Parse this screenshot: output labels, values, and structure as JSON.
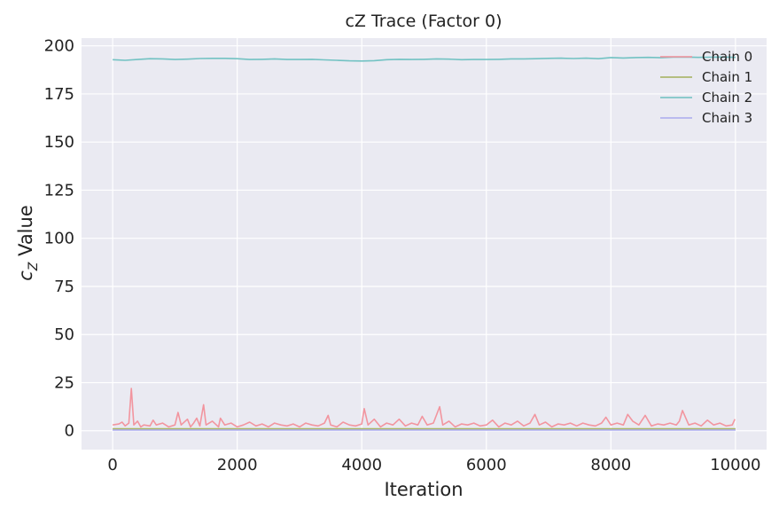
{
  "chart_data": {
    "type": "line",
    "title": "cZ Trace (Factor 0)",
    "xlabel": "Iteration",
    "ylabel_main": "c",
    "ylabel_sub": "Z",
    "ylabel_rest": " Value",
    "xlim": [
      -500,
      10500
    ],
    "ylim": [
      -9.8,
      204
    ],
    "xticks": [
      0,
      2000,
      4000,
      6000,
      8000,
      10000
    ],
    "yticks": [
      0,
      25,
      50,
      75,
      100,
      125,
      150,
      175,
      200
    ],
    "grid": true,
    "legend_position": "top-right",
    "series": [
      {
        "name": "Chain 0",
        "color": "#f2909a",
        "points": [
          [
            0,
            3.0
          ],
          [
            100,
            3.5
          ],
          [
            150,
            4.5
          ],
          [
            200,
            2.5
          ],
          [
            260,
            4.0
          ],
          [
            300,
            22.0
          ],
          [
            340,
            3.0
          ],
          [
            400,
            5.0
          ],
          [
            450,
            2.0
          ],
          [
            500,
            3.0
          ],
          [
            600,
            2.5
          ],
          [
            650,
            5.5
          ],
          [
            700,
            3.0
          ],
          [
            800,
            4.0
          ],
          [
            900,
            2.0
          ],
          [
            1000,
            3.0
          ],
          [
            1050,
            9.5
          ],
          [
            1100,
            3.0
          ],
          [
            1200,
            6.0
          ],
          [
            1250,
            2.0
          ],
          [
            1300,
            4.0
          ],
          [
            1350,
            6.5
          ],
          [
            1400,
            2.5
          ],
          [
            1460,
            13.5
          ],
          [
            1500,
            3.0
          ],
          [
            1600,
            5.0
          ],
          [
            1700,
            2.0
          ],
          [
            1730,
            6.5
          ],
          [
            1800,
            3.0
          ],
          [
            1900,
            4.0
          ],
          [
            2000,
            2.0
          ],
          [
            2100,
            3.0
          ],
          [
            2200,
            4.5
          ],
          [
            2300,
            2.5
          ],
          [
            2400,
            3.5
          ],
          [
            2500,
            2.0
          ],
          [
            2600,
            4.0
          ],
          [
            2700,
            3.0
          ],
          [
            2800,
            2.5
          ],
          [
            2900,
            3.5
          ],
          [
            3000,
            2.0
          ],
          [
            3100,
            4.0
          ],
          [
            3200,
            3.0
          ],
          [
            3300,
            2.5
          ],
          [
            3400,
            4.0
          ],
          [
            3460,
            8.0
          ],
          [
            3500,
            3.0
          ],
          [
            3600,
            2.0
          ],
          [
            3700,
            4.5
          ],
          [
            3800,
            3.0
          ],
          [
            3900,
            2.5
          ],
          [
            4000,
            3.5
          ],
          [
            4040,
            11.5
          ],
          [
            4100,
            3.0
          ],
          [
            4200,
            6.0
          ],
          [
            4300,
            2.0
          ],
          [
            4400,
            4.0
          ],
          [
            4500,
            3.0
          ],
          [
            4600,
            6.0
          ],
          [
            4700,
            2.5
          ],
          [
            4800,
            4.0
          ],
          [
            4900,
            3.0
          ],
          [
            4970,
            7.5
          ],
          [
            5050,
            3.0
          ],
          [
            5150,
            4.0
          ],
          [
            5250,
            12.5
          ],
          [
            5300,
            3.0
          ],
          [
            5400,
            5.0
          ],
          [
            5500,
            2.0
          ],
          [
            5600,
            3.5
          ],
          [
            5700,
            3.0
          ],
          [
            5800,
            4.0
          ],
          [
            5900,
            2.5
          ],
          [
            6000,
            3.0
          ],
          [
            6100,
            5.5
          ],
          [
            6200,
            2.0
          ],
          [
            6300,
            4.0
          ],
          [
            6400,
            3.0
          ],
          [
            6500,
            5.0
          ],
          [
            6600,
            2.5
          ],
          [
            6700,
            4.0
          ],
          [
            6780,
            8.5
          ],
          [
            6850,
            3.0
          ],
          [
            6950,
            4.5
          ],
          [
            7050,
            2.0
          ],
          [
            7150,
            3.5
          ],
          [
            7250,
            3.0
          ],
          [
            7350,
            4.0
          ],
          [
            7450,
            2.5
          ],
          [
            7550,
            4.0
          ],
          [
            7650,
            3.0
          ],
          [
            7750,
            2.5
          ],
          [
            7850,
            4.0
          ],
          [
            7920,
            7.0
          ],
          [
            8000,
            3.0
          ],
          [
            8100,
            4.0
          ],
          [
            8200,
            3.0
          ],
          [
            8270,
            8.5
          ],
          [
            8350,
            5.0
          ],
          [
            8450,
            3.0
          ],
          [
            8550,
            8.0
          ],
          [
            8650,
            2.5
          ],
          [
            8750,
            3.5
          ],
          [
            8850,
            3.0
          ],
          [
            8950,
            4.0
          ],
          [
            9050,
            3.0
          ],
          [
            9100,
            5.0
          ],
          [
            9150,
            10.5
          ],
          [
            9250,
            3.0
          ],
          [
            9350,
            4.0
          ],
          [
            9450,
            2.5
          ],
          [
            9550,
            5.5
          ],
          [
            9650,
            3.0
          ],
          [
            9750,
            4.0
          ],
          [
            9850,
            2.5
          ],
          [
            9950,
            3.0
          ],
          [
            9990,
            6.0
          ]
        ]
      },
      {
        "name": "Chain 1",
        "color": "#a3b05a",
        "points": [
          [
            0,
            1.0
          ],
          [
            2500,
            1.0
          ],
          [
            5000,
            1.0
          ],
          [
            7500,
            1.0
          ],
          [
            10000,
            1.0
          ]
        ]
      },
      {
        "name": "Chain 2",
        "color": "#6cc0c0",
        "points": [
          [
            0,
            192.8
          ],
          [
            200,
            192.5
          ],
          [
            400,
            192.9
          ],
          [
            600,
            193.3
          ],
          [
            800,
            193.2
          ],
          [
            1000,
            192.9
          ],
          [
            1200,
            193.1
          ],
          [
            1400,
            193.4
          ],
          [
            1600,
            193.5
          ],
          [
            1800,
            193.5
          ],
          [
            2000,
            193.3
          ],
          [
            2200,
            192.9
          ],
          [
            2400,
            193.0
          ],
          [
            2600,
            193.2
          ],
          [
            2800,
            192.9
          ],
          [
            3000,
            192.9
          ],
          [
            3200,
            193.0
          ],
          [
            3400,
            192.7
          ],
          [
            3600,
            192.5
          ],
          [
            3800,
            192.2
          ],
          [
            4000,
            192.1
          ],
          [
            4200,
            192.3
          ],
          [
            4400,
            192.8
          ],
          [
            4600,
            193.0
          ],
          [
            4800,
            192.9
          ],
          [
            5000,
            193.0
          ],
          [
            5200,
            193.2
          ],
          [
            5400,
            193.1
          ],
          [
            5600,
            192.8
          ],
          [
            5800,
            192.9
          ],
          [
            6000,
            192.9
          ],
          [
            6200,
            193.0
          ],
          [
            6400,
            193.2
          ],
          [
            6600,
            193.2
          ],
          [
            6800,
            193.3
          ],
          [
            7000,
            193.5
          ],
          [
            7200,
            193.6
          ],
          [
            7400,
            193.4
          ],
          [
            7600,
            193.6
          ],
          [
            7800,
            193.3
          ],
          [
            8000,
            193.9
          ],
          [
            8200,
            193.7
          ],
          [
            8400,
            193.9
          ],
          [
            8600,
            194.0
          ],
          [
            8800,
            193.8
          ],
          [
            9000,
            194.1
          ],
          [
            9200,
            194.2
          ],
          [
            9400,
            194.0
          ],
          [
            9600,
            194.1
          ],
          [
            9800,
            194.2
          ],
          [
            10000,
            194.0
          ]
        ]
      },
      {
        "name": "Chain 3",
        "color": "#aaaaee",
        "points": [
          [
            0,
            0.4
          ],
          [
            2500,
            0.4
          ],
          [
            5000,
            0.4
          ],
          [
            7500,
            0.4
          ],
          [
            10000,
            0.4
          ]
        ]
      }
    ]
  }
}
